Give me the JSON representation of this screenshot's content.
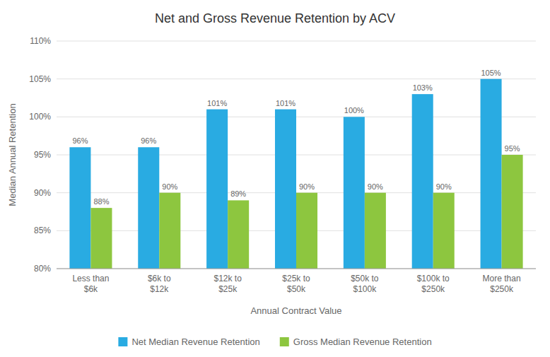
{
  "chart_data": {
    "type": "bar",
    "title": "Net and Gross Revenue Retention by ACV",
    "x_label": "Annual Contract Value",
    "y_label": "Median Annual Retention",
    "categories": [
      "Less than\n$6k",
      "$6k to\n$12k",
      "$12k to\n$25k",
      "$25k to\n$50k",
      "$50k to\n$100k",
      "$100k to\n$250k",
      "More than\n$250k"
    ],
    "series": [
      {
        "name": "Net Median Revenue Retention",
        "color": "#29ABE2",
        "values": [
          96,
          96,
          101,
          101,
          100,
          103,
          105
        ],
        "value_labels": [
          "96%",
          "96%",
          "101%",
          "101%",
          "100%",
          "103%",
          "105%"
        ]
      },
      {
        "name": "Gross Median Revenue Retention",
        "color": "#8DC63F",
        "values": [
          88,
          90,
          89,
          90,
          90,
          90,
          95
        ],
        "value_labels": [
          "88%",
          "90%",
          "89%",
          "90%",
          "90%",
          "90%",
          "95%"
        ]
      }
    ],
    "ylim": [
      80,
      110
    ],
    "yticks": [
      {
        "value": 80,
        "label": "80%"
      },
      {
        "value": 85,
        "label": "85%"
      },
      {
        "value": 90,
        "label": "90%"
      },
      {
        "value": 95,
        "label": "95%"
      },
      {
        "value": 100,
        "label": "100%"
      },
      {
        "value": 105,
        "label": "105%"
      },
      {
        "value": 110,
        "label": "110%"
      }
    ],
    "grid": true,
    "legend": "bottom",
    "data_labels": true
  }
}
